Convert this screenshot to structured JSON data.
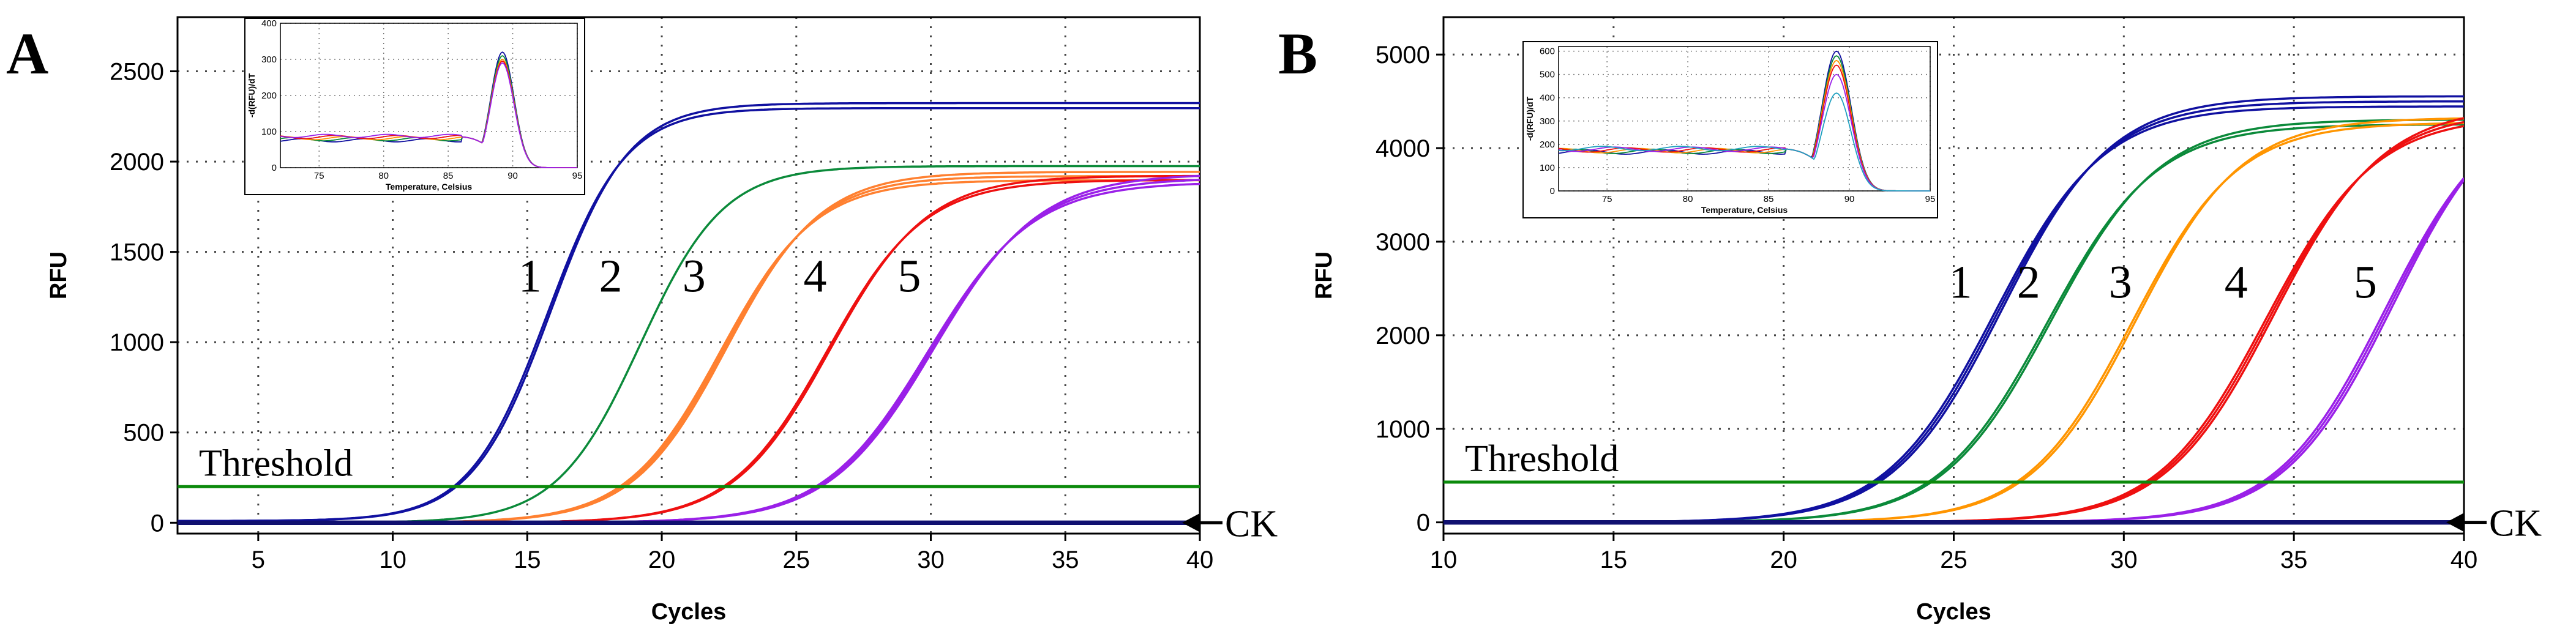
{
  "chart_data": [
    {
      "panel": "A",
      "type": "line",
      "xlabel": "Cycles",
      "ylabel": "RFU",
      "xlim": [
        2,
        40
      ],
      "ylim": [
        -60,
        2800
      ],
      "xticks": [
        5,
        10,
        15,
        20,
        25,
        30,
        35,
        40
      ],
      "yticks": [
        0,
        500,
        1000,
        1500,
        2000,
        2500
      ],
      "grid": true,
      "threshold": {
        "label": "Threshold",
        "value": 200,
        "color": "#0b8a0b"
      },
      "ck_label": "CK",
      "series": [
        {
          "name": "1",
          "color": "#1010a0",
          "replicates": 2,
          "plateau": 2300,
          "midpoint": 15.8,
          "slope": 1.45,
          "base": 10
        },
        {
          "name": "2",
          "color": "#0b8a3a",
          "replicates": 1,
          "plateau": 1975,
          "midpoint": 19.2,
          "slope": 1.55,
          "base": 0
        },
        {
          "name": "3",
          "color": "#ff8030",
          "replicates": 3,
          "plateau": 1920,
          "midpoint": 22.3,
          "slope": 1.75,
          "base": 0
        },
        {
          "name": "4",
          "color": "#ee1010",
          "replicates": 2,
          "plateau": 1910,
          "midpoint": 26.2,
          "slope": 1.8,
          "base": 0
        },
        {
          "name": "5",
          "color": "#9a20e8",
          "replicates": 3,
          "plateau": 1910,
          "midpoint": 30.0,
          "slope": 1.95,
          "base": 0
        }
      ],
      "curve_labels": [
        {
          "text": "1",
          "x": 15.1,
          "y": 1280
        },
        {
          "text": "2",
          "x": 18.1,
          "y": 1280
        },
        {
          "text": "3",
          "x": 21.2,
          "y": 1280
        },
        {
          "text": "4",
          "x": 25.7,
          "y": 1280
        },
        {
          "text": "5",
          "x": 29.2,
          "y": 1280
        }
      ],
      "inset": {
        "type": "line",
        "xlabel": "Temperature, Celsius",
        "ylabel": "-d(RFU)/dT",
        "xlim": [
          72,
          95
        ],
        "ylim": [
          0,
          400
        ],
        "xticks": [
          75,
          80,
          85,
          90,
          95
        ],
        "yticks": [
          0,
          100,
          200,
          300,
          400
        ],
        "peak_temp": 89.2,
        "peaks": [
          320,
          310,
          300,
          295,
          290
        ]
      }
    },
    {
      "panel": "B",
      "type": "line",
      "xlabel": "Cycles",
      "ylabel": "RFU",
      "xlim": [
        10,
        40
      ],
      "ylim": [
        -120,
        5400
      ],
      "xticks": [
        10,
        15,
        20,
        25,
        30,
        35,
        40
      ],
      "yticks": [
        0,
        1000,
        2000,
        3000,
        4000,
        5000
      ],
      "grid": true,
      "threshold": {
        "label": "Threshold",
        "value": 430,
        "color": "#0b8a0b"
      },
      "ck_label": "CK",
      "series": [
        {
          "name": "1",
          "color": "#1010a0",
          "replicates": 3,
          "plateau": 4500,
          "midpoint": 26.3,
          "slope": 1.6,
          "base": 0
        },
        {
          "name": "2",
          "color": "#0b8a3a",
          "replicates": 2,
          "plateau": 4280,
          "midpoint": 27.8,
          "slope": 1.6,
          "base": 0
        },
        {
          "name": "3",
          "color": "#ff9500",
          "replicates": 2,
          "plateau": 4300,
          "midpoint": 30.3,
          "slope": 1.55,
          "base": 0
        },
        {
          "name": "4",
          "color": "#ee1010",
          "replicates": 3,
          "plateau": 4400,
          "midpoint": 34.3,
          "slope": 1.6,
          "base": 0
        },
        {
          "name": "5",
          "color": "#9a20e8",
          "replicates": 3,
          "plateau": 4600,
          "midpoint": 37.8,
          "slope": 1.6,
          "base": 0
        }
      ],
      "curve_labels": [
        {
          "text": "1",
          "x": 25.2,
          "y": 2400
        },
        {
          "text": "2",
          "x": 27.2,
          "y": 2400
        },
        {
          "text": "3",
          "x": 29.9,
          "y": 2400
        },
        {
          "text": "4",
          "x": 33.3,
          "y": 2400
        },
        {
          "text": "5",
          "x": 37.1,
          "y": 2400
        }
      ],
      "inset": {
        "type": "line",
        "xlabel": "Temperature, Celsius",
        "ylabel": "-d(RFU)/dT",
        "xlim": [
          72,
          95
        ],
        "ylim": [
          0,
          620
        ],
        "xticks": [
          75,
          80,
          85,
          90,
          95
        ],
        "yticks": [
          0,
          100,
          200,
          300,
          400,
          500,
          600
        ],
        "peak_temp": 89.2,
        "peaks": [
          600,
          580,
          560,
          540,
          500,
          420
        ]
      }
    }
  ],
  "panel_labels": [
    "A",
    "B"
  ]
}
